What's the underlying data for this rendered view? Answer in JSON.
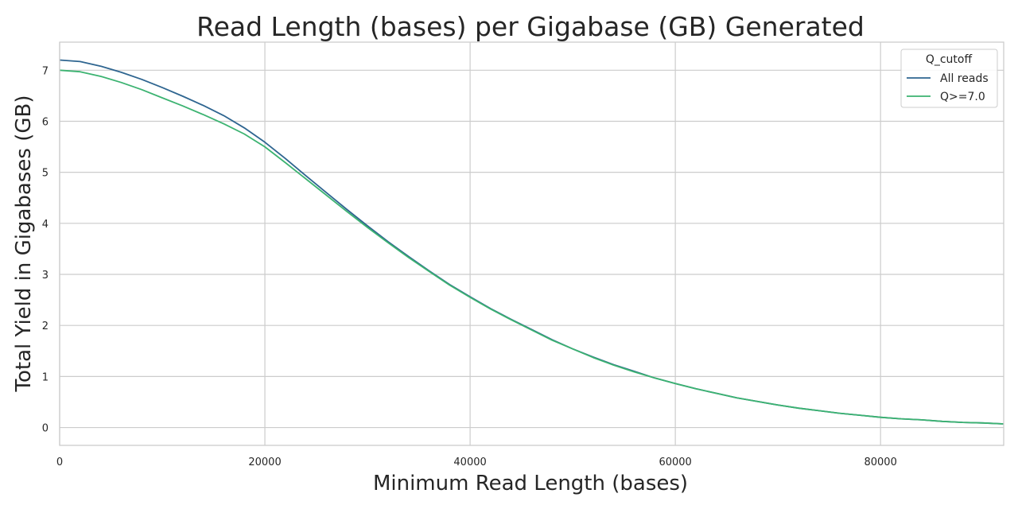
{
  "chart_data": {
    "type": "line",
    "title": "Read Length (bases) per Gigabase (GB) Generated",
    "xlabel": "Minimum Read Length (bases)",
    "ylabel": "Total Yield in Gigabases (GB)",
    "xlim": [
      0,
      92000
    ],
    "ylim": [
      -0.35,
      7.55
    ],
    "xticks": [
      0,
      20000,
      40000,
      60000,
      80000
    ],
    "yticks": [
      0,
      1,
      2,
      3,
      4,
      5,
      6,
      7
    ],
    "grid": true,
    "legend": {
      "title": "Q_cutoff",
      "position": "top-right"
    },
    "series": [
      {
        "name": "All reads",
        "color": "#2e6590",
        "x": [
          0,
          2000,
          4000,
          6000,
          8000,
          10000,
          12000,
          14000,
          16000,
          18000,
          20000,
          22000,
          24000,
          26000,
          28000,
          30000,
          32000,
          34000,
          36000,
          38000,
          40000,
          42000,
          44000,
          46000,
          48000,
          50000,
          52000,
          54000,
          56000,
          58000,
          60000,
          62000,
          64000,
          66000,
          68000,
          70000,
          72000,
          74000,
          76000,
          78000,
          80000,
          82000,
          84000,
          86000,
          88000,
          90000,
          92000
        ],
        "y": [
          7.2,
          7.17,
          7.08,
          6.96,
          6.82,
          6.66,
          6.49,
          6.31,
          6.11,
          5.87,
          5.59,
          5.27,
          4.93,
          4.6,
          4.27,
          3.95,
          3.64,
          3.35,
          3.07,
          2.8,
          2.56,
          2.33,
          2.12,
          1.92,
          1.72,
          1.54,
          1.38,
          1.23,
          1.1,
          0.97,
          0.86,
          0.76,
          0.67,
          0.58,
          0.51,
          0.44,
          0.38,
          0.33,
          0.28,
          0.24,
          0.2,
          0.17,
          0.15,
          0.12,
          0.1,
          0.09,
          0.07
        ]
      },
      {
        "name": "Q>=7.0",
        "color": "#3cb371",
        "x": [
          0,
          2000,
          4000,
          6000,
          8000,
          10000,
          12000,
          14000,
          16000,
          18000,
          20000,
          22000,
          24000,
          26000,
          28000,
          30000,
          32000,
          34000,
          36000,
          38000,
          40000,
          42000,
          44000,
          46000,
          48000,
          50000,
          52000,
          54000,
          56000,
          58000,
          60000,
          62000,
          64000,
          66000,
          68000,
          70000,
          72000,
          74000,
          76000,
          78000,
          80000,
          82000,
          84000,
          86000,
          88000,
          90000,
          92000
        ],
        "y": [
          7.0,
          6.97,
          6.88,
          6.76,
          6.62,
          6.46,
          6.3,
          6.13,
          5.95,
          5.75,
          5.5,
          5.19,
          4.87,
          4.55,
          4.23,
          3.92,
          3.62,
          3.33,
          3.06,
          2.79,
          2.55,
          2.32,
          2.11,
          1.91,
          1.71,
          1.54,
          1.37,
          1.22,
          1.09,
          0.97,
          0.86,
          0.76,
          0.67,
          0.58,
          0.51,
          0.44,
          0.38,
          0.33,
          0.28,
          0.24,
          0.2,
          0.17,
          0.15,
          0.12,
          0.1,
          0.09,
          0.07
        ]
      }
    ]
  }
}
